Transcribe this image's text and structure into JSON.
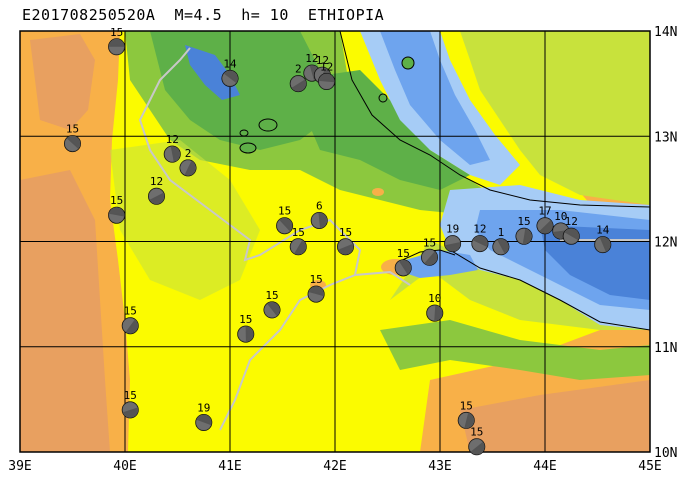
{
  "title": "E201708250520A  M=4.5  h= 10  ETHIOPIA",
  "colors": {
    "deep_sea": "#4a82d8",
    "mid_sea": "#6ea4ee",
    "shallow_sea": "#a6ccf6",
    "lowland_green": "#5eb048",
    "low_green2": "#8cc83e",
    "plain_lime": "#c8e23c",
    "plateau_yellow": "#fbfb00",
    "highland_orange": "#f8b048",
    "mountain_tan": "#e8a060",
    "boundary": "#c8c8c8"
  },
  "lon_labels": [
    "39E",
    "40E",
    "41E",
    "42E",
    "43E",
    "44E",
    "45E"
  ],
  "lat_labels": [
    "14N",
    "13N",
    "12N",
    "11N",
    "10N"
  ],
  "events": [
    {
      "label": "15",
      "lon": 39.92,
      "lat": 13.85
    },
    {
      "label": "14",
      "lon": 41.0,
      "lat": 13.55
    },
    {
      "label": "12",
      "lon": 41.78,
      "lat": 13.6
    },
    {
      "label": "12",
      "lon": 41.88,
      "lat": 13.58
    },
    {
      "label": "2",
      "lon": 41.65,
      "lat": 13.5
    },
    {
      "label": "12",
      "lon": 41.92,
      "lat": 13.52
    },
    {
      "label": "15",
      "lon": 39.5,
      "lat": 12.93
    },
    {
      "label": "12",
      "lon": 40.45,
      "lat": 12.83
    },
    {
      "label": "2",
      "lon": 40.6,
      "lat": 12.7
    },
    {
      "label": "12",
      "lon": 40.3,
      "lat": 12.43
    },
    {
      "label": "15",
      "lon": 39.92,
      "lat": 12.25
    },
    {
      "label": "15",
      "lon": 41.52,
      "lat": 12.15
    },
    {
      "label": "6",
      "lon": 41.85,
      "lat": 12.2
    },
    {
      "label": "15",
      "lon": 41.65,
      "lat": 11.95
    },
    {
      "label": "15",
      "lon": 42.1,
      "lat": 11.95
    },
    {
      "label": "15",
      "lon": 41.82,
      "lat": 11.5
    },
    {
      "label": "15",
      "lon": 41.4,
      "lat": 11.35
    },
    {
      "label": "15",
      "lon": 41.15,
      "lat": 11.12
    },
    {
      "label": "15",
      "lon": 40.05,
      "lat": 11.2
    },
    {
      "label": "15",
      "lon": 40.05,
      "lat": 10.4
    },
    {
      "label": "19",
      "lon": 40.75,
      "lat": 10.28
    },
    {
      "label": "15",
      "lon": 42.65,
      "lat": 11.75
    },
    {
      "label": "10",
      "lon": 42.95,
      "lat": 11.32
    },
    {
      "label": "15",
      "lon": 42.9,
      "lat": 11.85
    },
    {
      "label": "19",
      "lon": 43.12,
      "lat": 11.98
    },
    {
      "label": "12",
      "lon": 43.38,
      "lat": 11.98
    },
    {
      "label": "1",
      "lon": 43.58,
      "lat": 11.95
    },
    {
      "label": "15",
      "lon": 43.8,
      "lat": 12.05
    },
    {
      "label": "17",
      "lon": 44.0,
      "lat": 12.15
    },
    {
      "label": "10",
      "lon": 44.15,
      "lat": 12.1
    },
    {
      "label": "12",
      "lon": 44.25,
      "lat": 12.05
    },
    {
      "label": "14",
      "lon": 44.55,
      "lat": 11.97
    },
    {
      "label": "15",
      "lon": 43.25,
      "lat": 10.3
    },
    {
      "label": "15",
      "lon": 43.35,
      "lat": 10.05
    }
  ]
}
